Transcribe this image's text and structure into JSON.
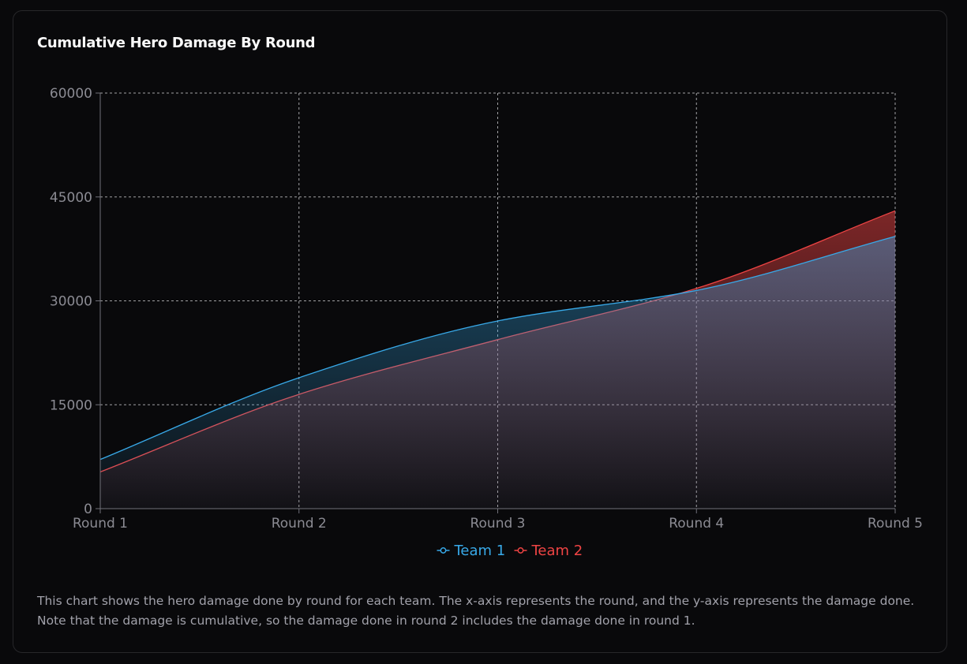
{
  "card": {
    "title": "Cumulative Hero Damage By Round",
    "description": "This chart shows the hero damage done by round for each team. The x-axis represents the round, and the y-axis represents the damage done. Note that the damage is cumulative, so the damage done in round 2 includes the damage done in round 1."
  },
  "colors": {
    "team1": "#38a9e8",
    "team2": "#ef4444",
    "grid": "#d4d4d8",
    "axis": "#71717a",
    "tick_text": "#8b8b93"
  },
  "chart_data": {
    "type": "area",
    "title": "Cumulative Hero Damage By Round",
    "categories": [
      "Round 1",
      "Round 2",
      "Round 3",
      "Round 4",
      "Round 5"
    ],
    "series": [
      {
        "name": "Team 1",
        "values": [
          7100,
          18900,
          27100,
          31500,
          39300
        ]
      },
      {
        "name": "Team 2",
        "values": [
          5300,
          16500,
          24400,
          31800,
          43000
        ]
      }
    ],
    "ylim": [
      0,
      60000
    ],
    "yticks": [
      "0",
      "15000",
      "30000",
      "45000",
      "60000"
    ],
    "grid": true,
    "legend": "bottom-center"
  }
}
